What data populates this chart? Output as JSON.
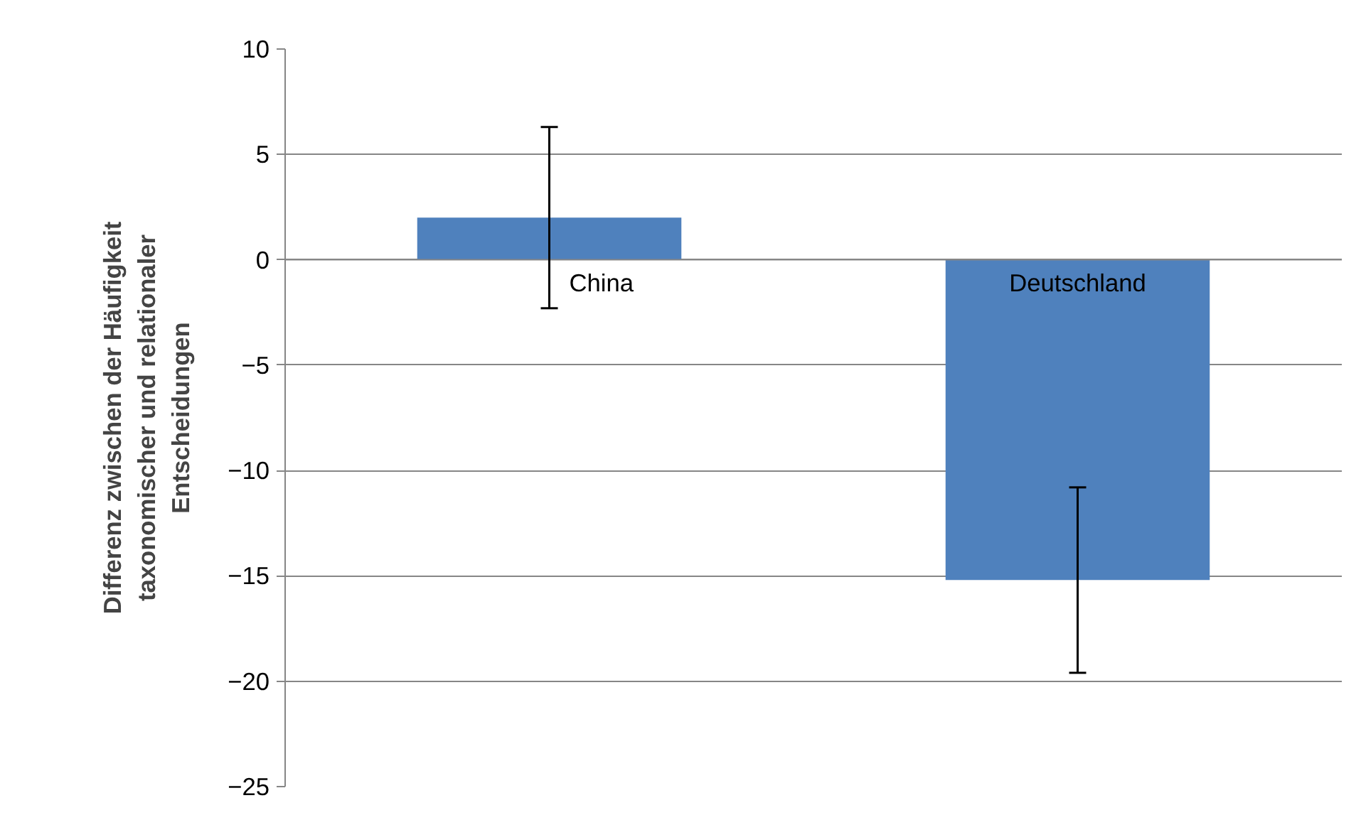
{
  "chart_data": {
    "type": "bar",
    "ylabel": "Differenz zwischen der Häufigkeit\ntaxonomischer und relationaler\nEntscheidungen",
    "categories": [
      "China",
      "Deutschland"
    ],
    "values": [
      2.0,
      -15.2
    ],
    "errors": [
      4.3,
      4.4
    ],
    "color": "#4f81bd",
    "ylim": [
      -25,
      10
    ],
    "yticks": [
      -25,
      -20,
      -15,
      -10,
      -5,
      0,
      5,
      10
    ],
    "grid": "y"
  }
}
